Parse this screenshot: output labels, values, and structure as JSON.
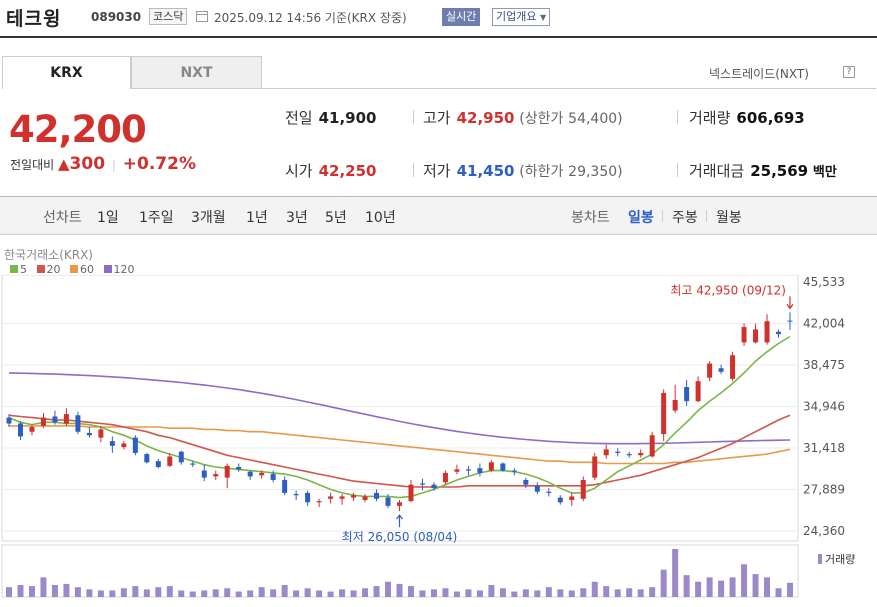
{
  "header": {
    "name": "테크윙",
    "code": "089030",
    "market": "코스닥",
    "datetime": "2025.09.12 14:56  기준(KRX 장중)",
    "realtime": "실시간",
    "overview": "기업개요"
  },
  "tabs": [
    {
      "label": "KRX"
    },
    {
      "label": "NXT"
    }
  ],
  "nxt_link": "넥스트레이드(NXT)",
  "help_icon": "?",
  "price": {
    "current": "42,200",
    "change_label": "전일대비",
    "change_value": "300",
    "change_rate": "+0.72%",
    "up_icon": "▲"
  },
  "quotes": {
    "prev_label": "전일",
    "prev": "41,900",
    "high_label": "고가",
    "high": "42,950",
    "upper_label": "(상한가",
    "upper": "54,400)",
    "volume_label": "거래량",
    "volume": "606,693",
    "open_label": "시가",
    "open": "42,250",
    "low_label": "저가",
    "low": "41,450",
    "lower_label": "(하한가",
    "lower": "29,350)",
    "amount_label": "거래대금",
    "amount": "25,569",
    "amount_unit": "백만"
  },
  "periods": {
    "line_label": "선차트",
    "line_items": [
      "1일",
      "1주일",
      "3개월",
      "1년",
      "3년",
      "5년",
      "10년"
    ],
    "candle_label": "봉차트",
    "candle_items": [
      "일봉",
      "주봉",
      "월봉"
    ],
    "candle_selected": "일봉"
  },
  "chart_source": "한국거래소(KRX)",
  "ma_legend": [
    {
      "label": "5",
      "color": "#7ab648"
    },
    {
      "label": "20",
      "color": "#d2564a"
    },
    {
      "label": "60",
      "color": "#e89a4a"
    },
    {
      "label": "120",
      "color": "#8e6cc4"
    }
  ],
  "chart_data": {
    "type": "candlestick",
    "yticks": [
      "45,533",
      "42,004",
      "38,475",
      "34,946",
      "31,418",
      "27,889",
      "24,360"
    ],
    "ylim": [
      24360,
      45533
    ],
    "high_note": "최고 42,950 (09/12)",
    "low_note": "최저 26,050 (08/04)",
    "volume_label": "거래량",
    "up_color": "#d0312d",
    "down_color": "#2c5ec4",
    "candles": [
      [
        34000,
        34300,
        33200,
        33500
      ],
      [
        33500,
        33700,
        32100,
        32400
      ],
      [
        32800,
        33400,
        32500,
        33200
      ],
      [
        33300,
        34400,
        33100,
        34000
      ],
      [
        34100,
        34600,
        33400,
        33600
      ],
      [
        33500,
        34800,
        33300,
        34300
      ],
      [
        34200,
        34500,
        32600,
        32800
      ],
      [
        32700,
        33200,
        32300,
        32500
      ],
      [
        32300,
        33300,
        31900,
        33000
      ],
      [
        32000,
        32400,
        31000,
        31600
      ],
      [
        31500,
        32000,
        31300,
        31800
      ],
      [
        32300,
        32500,
        30800,
        31000
      ],
      [
        30900,
        31000,
        30100,
        30200
      ],
      [
        30300,
        30500,
        29700,
        29800
      ],
      [
        29900,
        31000,
        29800,
        30700
      ],
      [
        31100,
        31200,
        30000,
        30200
      ],
      [
        30100,
        30300,
        29800,
        30000
      ],
      [
        29500,
        30000,
        28600,
        28900
      ],
      [
        29000,
        29500,
        28700,
        29200
      ],
      [
        28900,
        30100,
        28000,
        29900
      ],
      [
        29800,
        30100,
        29400,
        29600
      ],
      [
        29400,
        29500,
        28700,
        29000
      ],
      [
        29100,
        29500,
        28800,
        29300
      ],
      [
        29200,
        29500,
        28500,
        28700
      ],
      [
        28700,
        29000,
        27400,
        27600
      ],
      [
        27500,
        27800,
        27000,
        27400
      ],
      [
        27600,
        27800,
        26500,
        26800
      ],
      [
        26800,
        27100,
        26400,
        26900
      ],
      [
        27100,
        27600,
        26700,
        27300
      ],
      [
        27100,
        27500,
        26600,
        27300
      ],
      [
        27200,
        27600,
        26900,
        27400
      ],
      [
        27000,
        27500,
        26800,
        27300
      ],
      [
        27600,
        27900,
        26900,
        27100
      ],
      [
        27200,
        27500,
        26300,
        26500
      ],
      [
        26500,
        27000,
        26050,
        26800
      ],
      [
        26900,
        28700,
        26800,
        28300
      ],
      [
        28400,
        28800,
        27800,
        28300
      ],
      [
        28300,
        28500,
        27800,
        28000
      ],
      [
        28500,
        29500,
        28300,
        29300
      ],
      [
        29400,
        30000,
        29200,
        29600
      ],
      [
        29600,
        29900,
        29100,
        29500
      ],
      [
        29700,
        30100,
        29000,
        29300
      ],
      [
        29500,
        30400,
        29400,
        30200
      ],
      [
        30100,
        30200,
        29400,
        29500
      ],
      [
        29500,
        29700,
        29100,
        29400
      ],
      [
        28700,
        28900,
        28000,
        28300
      ],
      [
        28200,
        28500,
        27500,
        27700
      ],
      [
        27700,
        28000,
        27300,
        27600
      ],
      [
        27200,
        27400,
        26600,
        26800
      ],
      [
        27000,
        27600,
        26500,
        27300
      ],
      [
        27100,
        29000,
        26900,
        28700
      ],
      [
        28900,
        31000,
        28700,
        30700
      ],
      [
        30800,
        31700,
        30500,
        31300
      ],
      [
        31100,
        31400,
        30700,
        31000
      ],
      [
        30900,
        31100,
        30600,
        30800
      ],
      [
        30800,
        31300,
        30600,
        31000
      ],
      [
        30700,
        32800,
        30600,
        32500
      ],
      [
        32600,
        36400,
        32000,
        36100
      ],
      [
        34600,
        36800,
        34400,
        35500
      ],
      [
        36600,
        37200,
        35000,
        35400
      ],
      [
        35400,
        37500,
        35300,
        37100
      ],
      [
        37400,
        38800,
        37100,
        38600
      ],
      [
        38200,
        38500,
        37700,
        37900
      ],
      [
        37300,
        39600,
        37100,
        39300
      ],
      [
        40400,
        42000,
        40100,
        41700
      ],
      [
        40400,
        42000,
        40300,
        41500
      ],
      [
        40400,
        42800,
        40200,
        42200
      ],
      [
        41300,
        41500,
        40800,
        41100
      ],
      [
        42250,
        42950,
        41450,
        42200
      ]
    ],
    "ma5": [
      34000,
      33600,
      33400,
      33600,
      33600,
      33500,
      33500,
      33400,
      33200,
      32800,
      32500,
      32100,
      31600,
      31200,
      30900,
      30600,
      30300,
      30000,
      29800,
      29700,
      29600,
      29500,
      29400,
      29300,
      29200,
      29000,
      28700,
      28300,
      27900,
      27600,
      27400,
      27300,
      27300,
      27300,
      27200,
      27300,
      27600,
      27900,
      28300,
      28700,
      29000,
      29300,
      29500,
      29500,
      29400,
      29200,
      28900,
      28500,
      28000,
      27600,
      27600,
      28000,
      28700,
      29400,
      29900,
      30400,
      30900,
      31700,
      32700,
      33600,
      34600,
      35400,
      36100,
      36900,
      37800,
      38800,
      39600,
      40300,
      40900
    ],
    "ma20": [
      34200,
      34100,
      34000,
      33900,
      33800,
      33800,
      33700,
      33600,
      33500,
      33400,
      33200,
      33000,
      32800,
      32500,
      32300,
      32000,
      31700,
      31400,
      31100,
      30800,
      30600,
      30400,
      30200,
      30000,
      29800,
      29600,
      29400,
      29200,
      29000,
      28800,
      28600,
      28500,
      28400,
      28300,
      28200,
      28100,
      28100,
      28100,
      28100,
      28100,
      28200,
      28200,
      28200,
      28200,
      28200,
      28200,
      28200,
      28200,
      28200,
      28200,
      28200,
      28300,
      28500,
      28700,
      28900,
      29100,
      29400,
      29700,
      30000,
      30300,
      30600,
      31000,
      31400,
      31800,
      32300,
      32800,
      33300,
      33800,
      34200
    ],
    "ma60": [
      33300,
      33300,
      33300,
      33300,
      33300,
      33300,
      33300,
      33200,
      33200,
      33200,
      33200,
      33200,
      33200,
      33200,
      33100,
      33100,
      33100,
      33000,
      33000,
      32900,
      32900,
      32800,
      32800,
      32700,
      32600,
      32500,
      32400,
      32300,
      32200,
      32100,
      32000,
      31900,
      31800,
      31700,
      31600,
      31500,
      31400,
      31300,
      31200,
      31100,
      31000,
      30900,
      30800,
      30700,
      30600,
      30500,
      30400,
      30300,
      30300,
      30200,
      30200,
      30200,
      30100,
      30100,
      30100,
      30100,
      30100,
      30100,
      30200,
      30200,
      30300,
      30400,
      30500,
      30600,
      30700,
      30800,
      30900,
      31100,
      31300
    ],
    "ma120": [
      37800,
      37780,
      37760,
      37730,
      37700,
      37660,
      37620,
      37570,
      37520,
      37460,
      37400,
      37330,
      37250,
      37170,
      37080,
      36990,
      36880,
      36770,
      36650,
      36520,
      36380,
      36230,
      36070,
      35900,
      35720,
      35530,
      35330,
      35130,
      34920,
      34710,
      34500,
      34290,
      34080,
      33880,
      33680,
      33490,
      33310,
      33140,
      32980,
      32830,
      32690,
      32560,
      32440,
      32330,
      32230,
      32140,
      32060,
      31990,
      31930,
      31880,
      31840,
      31810,
      31790,
      31780,
      31780,
      31790,
      31800,
      31820,
      31840,
      31870,
      31900,
      31930,
      31960,
      31990,
      32020,
      32040,
      32060,
      32080,
      32100
    ],
    "volumes": [
      18,
      22,
      20,
      36,
      22,
      24,
      18,
      14,
      12,
      12,
      16,
      20,
      14,
      18,
      20,
      12,
      10,
      12,
      14,
      16,
      10,
      12,
      18,
      14,
      22,
      12,
      16,
      12,
      10,
      14,
      12,
      16,
      20,
      28,
      24,
      20,
      12,
      14,
      16,
      10,
      14,
      12,
      22,
      16,
      10,
      14,
      12,
      18,
      14,
      12,
      16,
      28,
      20,
      14,
      16,
      14,
      18,
      50,
      88,
      40,
      28,
      36,
      30,
      36,
      60,
      42,
      36,
      16,
      26
    ]
  }
}
